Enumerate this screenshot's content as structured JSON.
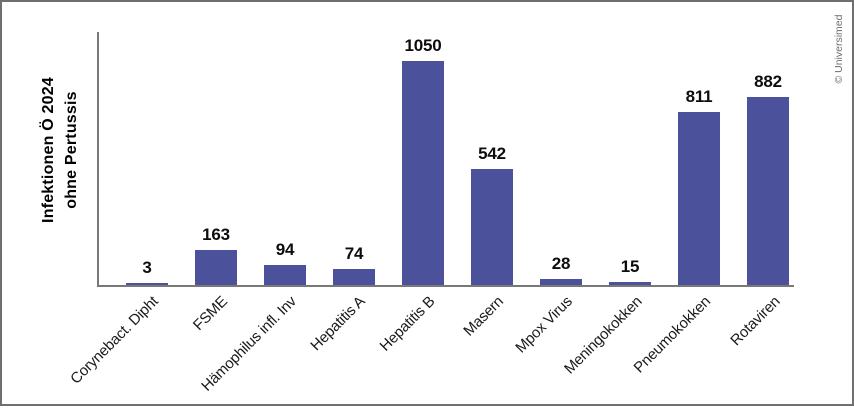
{
  "watermark": "© Universimed",
  "chart_data": {
    "type": "bar",
    "title": "",
    "ylabel": "Infektionen Ö 2024 ohne Pertussis",
    "ylabel_line1": "Infektionen Ö 2024",
    "ylabel_line2": "ohne Pertussis",
    "xlabel": "",
    "categories": [
      "Corynebact. Dipht",
      "FSME",
      "Hämophilus infl. Inv",
      "Hepatitis A",
      "Hepatitis B",
      "Masern",
      "Mpox Virus",
      "Meningokokken",
      "Pneumokokken",
      "Rotaviren"
    ],
    "values": [
      3,
      163,
      94,
      74,
      1050,
      542,
      28,
      15,
      811,
      882
    ],
    "ylim": [
      0,
      1185
    ],
    "grid": false,
    "legend": null,
    "y_axis_ticks_visible": false,
    "bar_color": "#4c519b",
    "axis_color": "#787878",
    "value_label_color": "#0d0d0d",
    "category_label_color": "#1a1a1a",
    "frame_border_color": "#6f6f6f",
    "watermark_color": "#6e6e6e"
  }
}
